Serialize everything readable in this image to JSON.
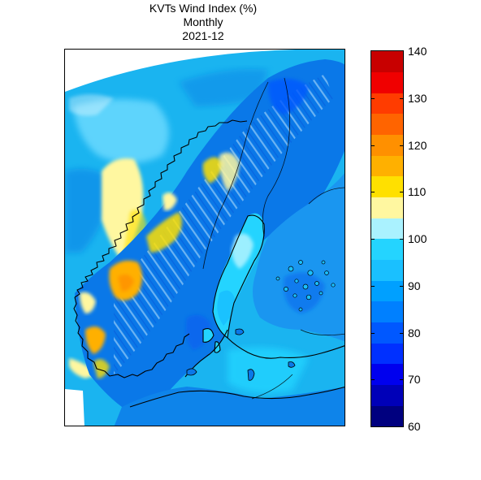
{
  "title": {
    "line1": "KVTs Wind Index (%)",
    "line2": "Monthly",
    "line3": "2021-12"
  },
  "colorbar": {
    "min": 60,
    "max": 140,
    "step": 5,
    "ticks": [
      140,
      130,
      120,
      110,
      100,
      90,
      80,
      70,
      60
    ],
    "colors": [
      "#00007f",
      "#0000b8",
      "#0000ee",
      "#0030ff",
      "#0058ff",
      "#0080ff",
      "#00a0ff",
      "#1ac0ff",
      "#24d4ff",
      "#aaf2ff",
      "#fff7a0",
      "#ffe000",
      "#ffb000",
      "#ff9000",
      "#ff6400",
      "#ff3c00",
      "#f00000",
      "#c80000"
    ]
  },
  "map": {
    "region": "Scandinavia",
    "ocean_color": "#1ab4f0",
    "land_base_color": "#0a78e8",
    "coastline_color": "#000000"
  }
}
